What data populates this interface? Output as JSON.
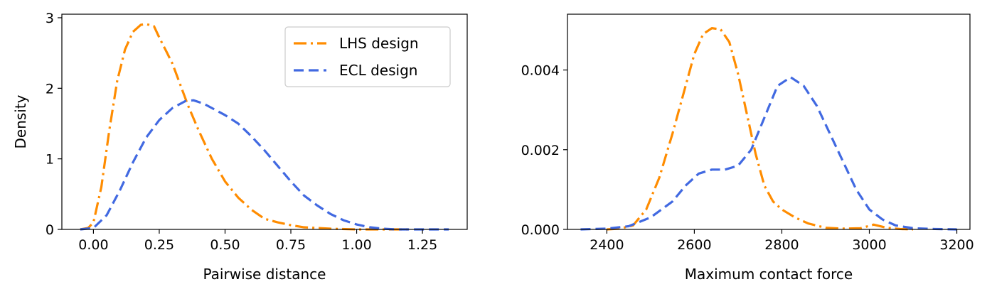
{
  "chart_data": [
    {
      "type": "line",
      "title": "",
      "xlabel": "Pairwise distance",
      "ylabel": "Density",
      "xlim": [
        -0.12,
        1.42
      ],
      "ylim": [
        0,
        3.05
      ],
      "xticks": [
        0.0,
        0.25,
        0.5,
        0.75,
        1.0,
        1.25
      ],
      "xtick_labels": [
        "0.00",
        "0.25",
        "0.50",
        "0.75",
        "1.00",
        "1.25"
      ],
      "yticks": [
        0,
        1,
        2,
        3
      ],
      "ytick_labels": [
        "0",
        "1",
        "2",
        "3"
      ],
      "grid": false,
      "legend": {
        "position": "top-right"
      },
      "series": [
        {
          "name": "LHS design",
          "color": "#ff8c00",
          "dash": "dashdot",
          "x": [
            -0.05,
            -0.02,
            0.0,
            0.03,
            0.06,
            0.09,
            0.12,
            0.15,
            0.18,
            0.2,
            0.23,
            0.25,
            0.28,
            0.3,
            0.33,
            0.36,
            0.4,
            0.45,
            0.5,
            0.55,
            0.6,
            0.65,
            0.7,
            0.75,
            0.8,
            0.9,
            1.0,
            1.1,
            1.2
          ],
          "y": [
            0.0,
            0.02,
            0.1,
            0.6,
            1.4,
            2.1,
            2.55,
            2.8,
            2.9,
            2.91,
            2.88,
            2.72,
            2.5,
            2.35,
            2.05,
            1.75,
            1.4,
            1.0,
            0.68,
            0.45,
            0.28,
            0.15,
            0.1,
            0.06,
            0.03,
            0.01,
            0.0,
            0.0,
            0.0
          ]
        },
        {
          "name": "ECL design",
          "color": "#4169e1",
          "dash": "dashed",
          "x": [
            -0.05,
            0.0,
            0.05,
            0.1,
            0.15,
            0.2,
            0.25,
            0.3,
            0.35,
            0.38,
            0.42,
            0.45,
            0.5,
            0.55,
            0.6,
            0.65,
            0.7,
            0.75,
            0.8,
            0.85,
            0.9,
            0.95,
            1.0,
            1.05,
            1.1,
            1.15,
            1.2,
            1.25,
            1.3,
            1.35
          ],
          "y": [
            0.0,
            0.02,
            0.2,
            0.55,
            0.95,
            1.3,
            1.55,
            1.72,
            1.82,
            1.83,
            1.78,
            1.72,
            1.62,
            1.5,
            1.32,
            1.12,
            0.9,
            0.68,
            0.48,
            0.34,
            0.22,
            0.13,
            0.07,
            0.03,
            0.01,
            0.0,
            0.0,
            0.0,
            0.0,
            0.0
          ]
        }
      ]
    },
    {
      "type": "line",
      "title": "",
      "xlabel": "Maximum contact force",
      "ylabel": "",
      "xlim": [
        2310,
        3230
      ],
      "ylim": [
        0,
        0.0054
      ],
      "xticks": [
        2400,
        2600,
        2800,
        3000,
        3200
      ],
      "xtick_labels": [
        "2400",
        "2600",
        "2800",
        "3000",
        "3200"
      ],
      "yticks": [
        0.0,
        0.002,
        0.004
      ],
      "ytick_labels": [
        "0.000",
        "0.002",
        "0.004"
      ],
      "grid": false,
      "legend": null,
      "series": [
        {
          "name": "LHS design",
          "color": "#ff8c00",
          "dash": "dashdot",
          "x": [
            2400,
            2430,
            2460,
            2490,
            2520,
            2550,
            2580,
            2600,
            2620,
            2640,
            2660,
            2680,
            2700,
            2720,
            2740,
            2760,
            2780,
            2800,
            2830,
            2860,
            2900,
            2940,
            2980,
            3010,
            3040,
            3070,
            3100
          ],
          "y": [
            0.0,
            2e-05,
            0.0001,
            0.0005,
            0.0013,
            0.0024,
            0.0036,
            0.0044,
            0.0049,
            0.00505,
            0.00502,
            0.0047,
            0.0039,
            0.0029,
            0.0019,
            0.0011,
            0.0007,
            0.0005,
            0.0003,
            0.00015,
            4e-05,
            2e-05,
            3e-05,
            0.00012,
            4e-05,
            1e-05,
            0.0
          ]
        },
        {
          "name": "ECL design",
          "color": "#4169e1",
          "dash": "dashed",
          "x": [
            2340,
            2400,
            2450,
            2500,
            2550,
            2580,
            2610,
            2640,
            2670,
            2700,
            2730,
            2760,
            2790,
            2820,
            2850,
            2880,
            2910,
            2940,
            2970,
            3000,
            3030,
            3060,
            3100,
            3150,
            3200
          ],
          "y": [
            0.0,
            2e-05,
            8e-05,
            0.0003,
            0.0007,
            0.0011,
            0.0014,
            0.0015,
            0.0015,
            0.0016,
            0.002,
            0.0028,
            0.0036,
            0.00382,
            0.0036,
            0.0031,
            0.0024,
            0.0017,
            0.001,
            0.0005,
            0.00025,
            0.0001,
            3e-05,
            1e-05,
            0.0
          ]
        }
      ]
    }
  ]
}
